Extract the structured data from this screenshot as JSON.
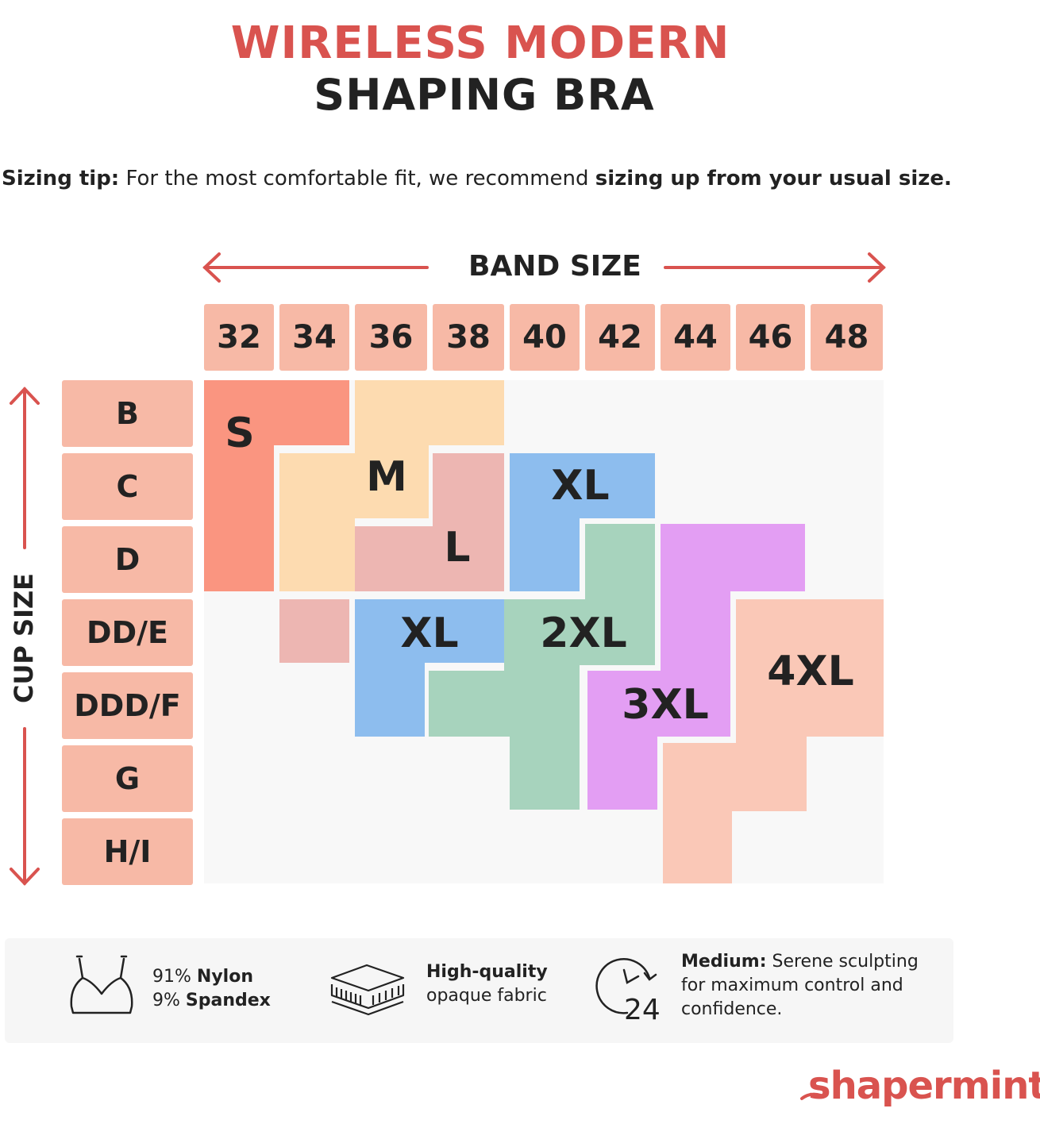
{
  "title": {
    "line1": "WIRELESS MODERN",
    "line2": "SHAPING BRA"
  },
  "tip": {
    "label": "Sizing tip:",
    "text": " For the most comfortable fit, we recommend ",
    "emphasis": "sizing up from your usual size."
  },
  "chart": {
    "band_label": "BAND SIZE",
    "cup_label": "CUP SIZE",
    "band_sizes": [
      "32",
      "34",
      "36",
      "38",
      "40",
      "42",
      "44",
      "46",
      "48"
    ],
    "cup_sizes": [
      "B",
      "C",
      "D",
      "DD/E",
      "DDD/F",
      "G",
      "H/I"
    ],
    "regions": [
      {
        "label": "S",
        "color": "#fa9580"
      },
      {
        "label": "M",
        "color": "#fddbb0"
      },
      {
        "label": "L",
        "color": "#edb6b2"
      },
      {
        "label": "XL",
        "color": "#8dbdee"
      },
      {
        "label": "XL",
        "color": "#8dbdee"
      },
      {
        "label": "2XL",
        "color": "#a7d3bd"
      },
      {
        "label": "3XL",
        "color": "#e39ef3"
      },
      {
        "label": "4XL",
        "color": "#fac8b7"
      }
    ]
  },
  "features": [
    {
      "icon": "bra-icon",
      "line1_a": "91% ",
      "line1_b": "Nylon",
      "line2_a": "9% ",
      "line2_b": "Spandex"
    },
    {
      "icon": "fabric-layers-icon",
      "line1": "High-quality",
      "line2": "opaque fabric"
    },
    {
      "icon": "clock-24-icon",
      "icon_text": "24",
      "bold": "Medium:",
      "line1": " Serene sculpting",
      "line2": "for maximum control and",
      "line3": "confidence."
    }
  ],
  "brand": "shapermint",
  "colors": {
    "accent": "#d9534f",
    "header_cell": "#f7b9a6"
  }
}
